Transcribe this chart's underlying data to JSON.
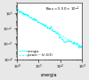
{
  "annotation_text": "Bias = 5.50 × 10$^{-1}$",
  "line_color": "#00ffff",
  "dashed_color": "#00ffff",
  "background_color": "#e8e8e8",
  "axes_color": "#ffffff",
  "xlabel": "energia",
  "legend_entries": [
    "energia",
    "power ~ k(-5/3)"
  ],
  "xlim": [
    1.0,
    1000.0
  ],
  "ylim": [
    1e-05,
    200.0
  ],
  "x_intercept": 1.5,
  "slope": -1.6667,
  "seed": 42,
  "n_points": 400
}
